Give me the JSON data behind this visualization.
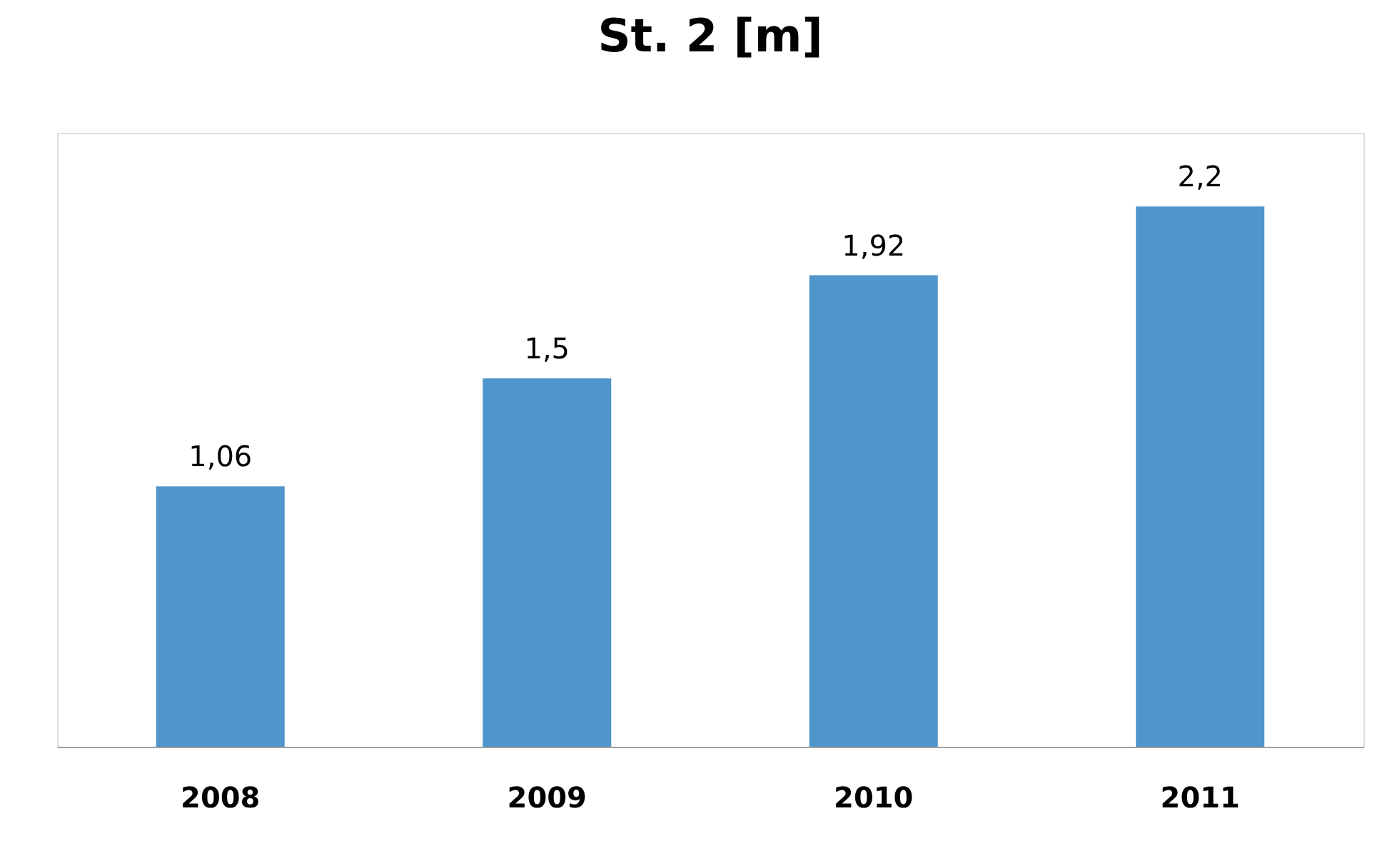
{
  "chart_data": {
    "type": "bar",
    "title": "St. 2 [m]",
    "categories": [
      "2008",
      "2009",
      "2010",
      "2011"
    ],
    "values": [
      1.06,
      1.5,
      1.92,
      2.2
    ],
    "value_labels": [
      "1,06",
      "1,5",
      "1,92",
      "2,2"
    ],
    "color": "#4f96cc"
  }
}
